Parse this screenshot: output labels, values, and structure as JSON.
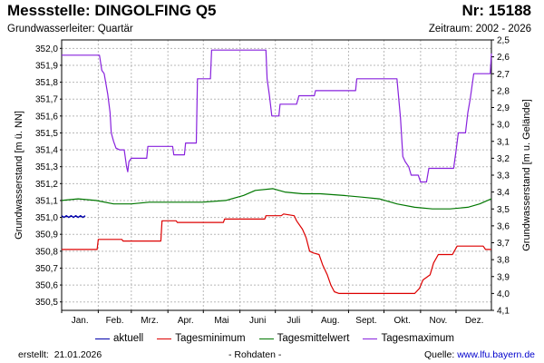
{
  "header": {
    "title": "Messstelle: DINGOLFING Q5",
    "number": "Nr: 15188",
    "aquifer": "Grundwasserleiter: Quartär",
    "period": "Zeitraum: 2002 - 2026"
  },
  "footer": {
    "created_label": "erstellt:",
    "created_date": "21.01.2026",
    "raw_note": "- Rohdaten -",
    "source_label": "Quelle:",
    "source_link": "www.lfu.bayern.de"
  },
  "colors": {
    "aktuell": "#0000aa",
    "tagesminimum": "#dd0000",
    "tagesmittelwert": "#007700",
    "tagesmaximum": "#8822dd",
    "grid": "#b8b8b8"
  },
  "chart_data": {
    "type": "line",
    "xlabel": "",
    "ylabel": "Grundwasserstand [m ü. NN]",
    "y2label": "Grundwasserstand [m u. Gelände]",
    "x_unit": "day of year",
    "xlim": [
      1,
      365
    ],
    "ylim": [
      350.45,
      352.05
    ],
    "y2lim": [
      4.1,
      2.5
    ],
    "y_ticks": [
      "352,0",
      "351,9",
      "351,8",
      "351,7",
      "351,6",
      "351,5",
      "351,4",
      "351,3",
      "351,2",
      "351,1",
      "351,0",
      "350,9",
      "350,8",
      "350,7",
      "350,6",
      "350,5"
    ],
    "y2_ticks": [
      "2,5",
      "2,6",
      "2,7",
      "2,8",
      "2,9",
      "3,0",
      "3,1",
      "3,2",
      "3,3",
      "3,4",
      "3,5",
      "3,6",
      "3,7",
      "3,8",
      "3,9",
      "4,0",
      "4,1"
    ],
    "month_labels": [
      "Jan.",
      "Feb.",
      "Mrz.",
      "Apr.",
      "Mai",
      "Juni",
      "Juli",
      "Aug.",
      "Sept.",
      "Okt.",
      "Nov.",
      "Dez."
    ],
    "grid": true,
    "legend_position": "bottom",
    "series": [
      {
        "name": "aktuell",
        "key": "aktuell",
        "points": [
          [
            1,
            351.01
          ],
          [
            3,
            351.0
          ],
          [
            5,
            351.01
          ],
          [
            7,
            351.0
          ],
          [
            9,
            351.01
          ],
          [
            11,
            351.0
          ],
          [
            13,
            351.01
          ],
          [
            15,
            351.0
          ],
          [
            17,
            351.01
          ],
          [
            19,
            351.0
          ],
          [
            21,
            351.01
          ]
        ]
      },
      {
        "name": "Tagesminimum",
        "key": "tagesminimum",
        "points": [
          [
            1,
            350.81
          ],
          [
            31,
            350.81
          ],
          [
            32,
            350.87
          ],
          [
            52,
            350.87
          ],
          [
            53,
            350.86
          ],
          [
            85,
            350.86
          ],
          [
            86,
            350.98
          ],
          [
            98,
            350.98
          ],
          [
            99,
            350.97
          ],
          [
            138,
            350.97
          ],
          [
            139,
            350.99
          ],
          [
            173,
            350.99
          ],
          [
            174,
            351.01
          ],
          [
            187,
            351.01
          ],
          [
            189,
            351.02
          ],
          [
            198,
            351.01
          ],
          [
            200,
            350.98
          ],
          [
            205,
            350.93
          ],
          [
            208,
            350.88
          ],
          [
            211,
            350.8
          ],
          [
            214,
            350.79
          ],
          [
            219,
            350.78
          ],
          [
            222,
            350.72
          ],
          [
            226,
            350.66
          ],
          [
            229,
            350.6
          ],
          [
            232,
            350.56
          ],
          [
            236,
            350.55
          ],
          [
            300,
            350.55
          ],
          [
            304,
            350.58
          ],
          [
            307,
            350.63
          ],
          [
            313,
            350.66
          ],
          [
            316,
            350.73
          ],
          [
            320,
            350.78
          ],
          [
            332,
            350.78
          ],
          [
            336,
            350.83
          ],
          [
            358,
            350.83
          ],
          [
            360,
            350.81
          ],
          [
            365,
            350.81
          ]
        ]
      },
      {
        "name": "Tagesmittelwert",
        "key": "tagesmittelwert",
        "points": [
          [
            1,
            351.1
          ],
          [
            15,
            351.11
          ],
          [
            30,
            351.1
          ],
          [
            45,
            351.08
          ],
          [
            60,
            351.08
          ],
          [
            75,
            351.09
          ],
          [
            100,
            351.09
          ],
          [
            120,
            351.09
          ],
          [
            140,
            351.1
          ],
          [
            155,
            351.13
          ],
          [
            165,
            351.16
          ],
          [
            180,
            351.17
          ],
          [
            190,
            351.15
          ],
          [
            205,
            351.14
          ],
          [
            220,
            351.14
          ],
          [
            240,
            351.13
          ],
          [
            255,
            351.12
          ],
          [
            270,
            351.11
          ],
          [
            285,
            351.08
          ],
          [
            300,
            351.06
          ],
          [
            315,
            351.05
          ],
          [
            330,
            351.05
          ],
          [
            345,
            351.06
          ],
          [
            355,
            351.08
          ],
          [
            365,
            351.11
          ]
        ]
      },
      {
        "name": "Tagesmaximum",
        "key": "tagesmaximum",
        "points": [
          [
            1,
            351.96
          ],
          [
            33,
            351.96
          ],
          [
            35,
            351.87
          ],
          [
            37,
            351.85
          ],
          [
            40,
            351.73
          ],
          [
            42,
            351.62
          ],
          [
            43,
            351.5
          ],
          [
            45,
            351.45
          ],
          [
            47,
            351.41
          ],
          [
            50,
            351.4
          ],
          [
            54,
            351.4
          ],
          [
            56,
            351.3
          ],
          [
            57,
            351.27
          ],
          [
            58,
            351.33
          ],
          [
            60,
            351.35
          ],
          [
            73,
            351.35
          ],
          [
            74,
            351.42
          ],
          [
            95,
            351.42
          ],
          [
            96,
            351.37
          ],
          [
            105,
            351.37
          ],
          [
            106,
            351.44
          ],
          [
            115,
            351.44
          ],
          [
            116,
            351.82
          ],
          [
            127,
            351.82
          ],
          [
            128,
            351.99
          ],
          [
            174,
            351.99
          ],
          [
            175,
            351.82
          ],
          [
            177,
            351.72
          ],
          [
            179,
            351.6
          ],
          [
            185,
            351.6
          ],
          [
            186,
            351.67
          ],
          [
            200,
            351.67
          ],
          [
            202,
            351.72
          ],
          [
            215,
            351.72
          ],
          [
            216,
            351.75
          ],
          [
            250,
            351.75
          ],
          [
            251,
            351.82
          ],
          [
            285,
            351.82
          ],
          [
            288,
            351.59
          ],
          [
            290,
            351.36
          ],
          [
            292,
            351.33
          ],
          [
            295,
            351.3
          ],
          [
            297,
            351.25
          ],
          [
            303,
            351.25
          ],
          [
            305,
            351.21
          ],
          [
            310,
            351.21
          ],
          [
            312,
            351.29
          ],
          [
            333,
            351.29
          ],
          [
            335,
            351.39
          ],
          [
            337,
            351.5
          ],
          [
            343,
            351.5
          ],
          [
            345,
            351.62
          ],
          [
            347,
            351.7
          ],
          [
            350,
            351.85
          ],
          [
            364,
            351.85
          ],
          [
            365,
            351.97
          ]
        ]
      }
    ]
  }
}
